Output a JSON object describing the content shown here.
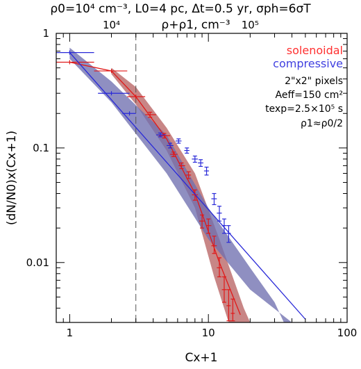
{
  "header": {
    "params_text": "ρ0=10⁴ cm⁻³, L0=4 pc, Δt=0.5 yr, σph=6σT"
  },
  "top_axis": {
    "label": "ρ+ρ1, cm⁻³",
    "tick_labels": [
      "10⁴",
      "10⁵"
    ],
    "tick_positions_x": [
      2.0,
      20.0
    ]
  },
  "annotations": {
    "pixels": "2\"x2\" pixels",
    "aeff": "Aeff=150 cm²",
    "texp": "texp=2.5×10⁵ s",
    "rho": "ρ1≈ρ0/2"
  },
  "legend": {
    "placement": "top-right",
    "entries": [
      {
        "name": "solenoidal",
        "color": "#ff3030"
      },
      {
        "name": "compressive",
        "color": "#4040e0"
      }
    ]
  },
  "chart_data": {
    "type": "scatter",
    "xlabel": "Cx+1",
    "ylabel": "(dN/N0)x(Cx+1)",
    "xscale": "log",
    "yscale": "log",
    "xlim": [
      0.8,
      100
    ],
    "ylim": [
      0.003,
      1
    ],
    "x_ticks": [
      {
        "v": 1,
        "label": "1"
      },
      {
        "v": 10,
        "label": "10"
      },
      {
        "v": 100,
        "label": "100"
      }
    ],
    "y_ticks": [
      {
        "v": 0.01,
        "label": "0.01"
      },
      {
        "v": 0.1,
        "label": "0.1"
      },
      {
        "v": 1,
        "label": "1"
      }
    ],
    "vline_x": 3.0,
    "series": [
      {
        "name": "solenoidal",
        "color": "#e01818",
        "band_color": "#b86464",
        "points": [
          {
            "x": 1.0,
            "y": 0.56,
            "xlo": 0.8,
            "xhi": 1.5,
            "ylo": 0.56,
            "yhi": 0.56
          },
          {
            "x": 2.0,
            "y": 0.47,
            "xlo": 1.5,
            "xhi": 2.6,
            "ylo": 0.47,
            "yhi": 0.47
          },
          {
            "x": 3.0,
            "y": 0.28,
            "xlo": 2.6,
            "xhi": 3.5,
            "ylo": 0.28,
            "yhi": 0.28
          },
          {
            "x": 3.8,
            "y": 0.195,
            "xlo": 3.5,
            "xhi": 4.2,
            "ylo": 0.185,
            "yhi": 0.205
          },
          {
            "x": 4.8,
            "y": 0.128,
            "xlo": 4.4,
            "xhi": 5.3,
            "ylo": 0.122,
            "yhi": 0.134
          },
          {
            "x": 5.6,
            "y": 0.088,
            "xlo": 5.3,
            "xhi": 6.0,
            "ylo": 0.084,
            "yhi": 0.092
          },
          {
            "x": 6.4,
            "y": 0.07,
            "xlo": 6.1,
            "xhi": 6.8,
            "ylo": 0.066,
            "yhi": 0.074
          },
          {
            "x": 7.2,
            "y": 0.058,
            "xlo": 6.9,
            "xhi": 7.5,
            "ylo": 0.054,
            "yhi": 0.062
          },
          {
            "x": 8.0,
            "y": 0.039,
            "xlo": 7.6,
            "xhi": 8.4,
            "ylo": 0.035,
            "yhi": 0.043
          },
          {
            "x": 9.0,
            "y": 0.023,
            "xlo": 8.6,
            "xhi": 9.4,
            "ylo": 0.02,
            "yhi": 0.026
          },
          {
            "x": 10.0,
            "y": 0.021,
            "xlo": 9.6,
            "xhi": 10.5,
            "ylo": 0.018,
            "yhi": 0.024
          },
          {
            "x": 11.0,
            "y": 0.014,
            "xlo": 10.5,
            "xhi": 11.5,
            "ylo": 0.012,
            "yhi": 0.017
          },
          {
            "x": 12.0,
            "y": 0.009,
            "xlo": 11.5,
            "xhi": 12.5,
            "ylo": 0.0075,
            "yhi": 0.011
          },
          {
            "x": 13.0,
            "y": 0.0058,
            "xlo": 12.5,
            "xhi": 13.5,
            "ylo": 0.0045,
            "yhi": 0.0075
          },
          {
            "x": 14.0,
            "y": 0.0042,
            "xlo": 13.5,
            "xhi": 14.5,
            "ylo": 0.0031,
            "yhi": 0.0058
          },
          {
            "x": 15.0,
            "y": 0.0036,
            "xlo": 14.5,
            "xhi": 15.5,
            "ylo": 0.0031,
            "yhi": 0.0048
          }
        ],
        "fit_line": [
          {
            "x": 1.0,
            "y": 0.56
          },
          {
            "x": 2.0,
            "y": 0.47
          },
          {
            "x": 3.0,
            "y": 0.28
          },
          {
            "x": 5.0,
            "y": 0.12
          },
          {
            "x": 8.0,
            "y": 0.04
          },
          {
            "x": 12.0,
            "y": 0.01
          },
          {
            "x": 17.0,
            "y": 0.0035
          }
        ],
        "band_upper": [
          {
            "x": 2.0,
            "y": 0.5
          },
          {
            "x": 3.0,
            "y": 0.34
          },
          {
            "x": 5.0,
            "y": 0.15
          },
          {
            "x": 8.0,
            "y": 0.06
          },
          {
            "x": 12.0,
            "y": 0.016
          },
          {
            "x": 18.0,
            "y": 0.004
          },
          {
            "x": 20.0,
            "y": 0.003
          }
        ],
        "band_lower": [
          {
            "x": 2.0,
            "y": 0.44
          },
          {
            "x": 3.0,
            "y": 0.24
          },
          {
            "x": 5.0,
            "y": 0.095
          },
          {
            "x": 8.0,
            "y": 0.03
          },
          {
            "x": 11.0,
            "y": 0.0075
          },
          {
            "x": 14.0,
            "y": 0.003
          }
        ]
      },
      {
        "name": "compressive",
        "color": "#2828d8",
        "band_color": "#7070b0",
        "points": [
          {
            "x": 1.0,
            "y": 0.68,
            "xlo": 0.8,
            "xhi": 1.5,
            "ylo": 0.68,
            "yhi": 0.68
          },
          {
            "x": 2.0,
            "y": 0.3,
            "xlo": 1.6,
            "xhi": 2.7,
            "ylo": 0.3,
            "yhi": 0.3
          },
          {
            "x": 2.7,
            "y": 0.2,
            "xlo": 2.4,
            "xhi": 3.0,
            "ylo": 0.2,
            "yhi": 0.2
          },
          {
            "x": 4.5,
            "y": 0.13,
            "xlo": 4.2,
            "xhi": 4.9,
            "ylo": 0.125,
            "yhi": 0.135
          },
          {
            "x": 5.3,
            "y": 0.105,
            "xlo": 5.0,
            "xhi": 5.6,
            "ylo": 0.1,
            "yhi": 0.11
          },
          {
            "x": 6.1,
            "y": 0.115,
            "xlo": 5.8,
            "xhi": 6.4,
            "ylo": 0.11,
            "yhi": 0.12
          },
          {
            "x": 7.0,
            "y": 0.095,
            "xlo": 6.7,
            "xhi": 7.3,
            "ylo": 0.09,
            "yhi": 0.1
          },
          {
            "x": 8.0,
            "y": 0.08,
            "xlo": 7.6,
            "xhi": 8.4,
            "ylo": 0.075,
            "yhi": 0.085
          },
          {
            "x": 8.8,
            "y": 0.074,
            "xlo": 8.4,
            "xhi": 9.2,
            "ylo": 0.069,
            "yhi": 0.079
          },
          {
            "x": 9.7,
            "y": 0.063,
            "xlo": 9.3,
            "xhi": 10.1,
            "ylo": 0.058,
            "yhi": 0.068
          },
          {
            "x": 11.0,
            "y": 0.036,
            "xlo": 10.5,
            "xhi": 11.5,
            "ylo": 0.032,
            "yhi": 0.04
          },
          {
            "x": 12.0,
            "y": 0.027,
            "xlo": 11.5,
            "xhi": 12.5,
            "ylo": 0.023,
            "yhi": 0.031
          },
          {
            "x": 13.0,
            "y": 0.021,
            "xlo": 12.5,
            "xhi": 13.5,
            "ylo": 0.018,
            "yhi": 0.024
          },
          {
            "x": 14.0,
            "y": 0.018,
            "xlo": 13.5,
            "xhi": 14.5,
            "ylo": 0.015,
            "yhi": 0.021
          }
        ],
        "fit_line": [
          {
            "x": 1.0,
            "y": 0.68
          },
          {
            "x": 50.0,
            "y": 0.0032
          }
        ],
        "band_upper": [
          {
            "x": 1.0,
            "y": 0.75
          },
          {
            "x": 2.0,
            "y": 0.38
          },
          {
            "x": 5.0,
            "y": 0.13
          },
          {
            "x": 10.0,
            "y": 0.03
          },
          {
            "x": 20.0,
            "y": 0.009
          },
          {
            "x": 30.0,
            "y": 0.0045
          },
          {
            "x": 35.0,
            "y": 0.003
          }
        ],
        "band_lower": [
          {
            "x": 1.0,
            "y": 0.6
          },
          {
            "x": 2.0,
            "y": 0.25
          },
          {
            "x": 5.0,
            "y": 0.06
          },
          {
            "x": 10.0,
            "y": 0.016
          },
          {
            "x": 20.0,
            "y": 0.0058
          },
          {
            "x": 40.0,
            "y": 0.003
          }
        ]
      }
    ]
  }
}
